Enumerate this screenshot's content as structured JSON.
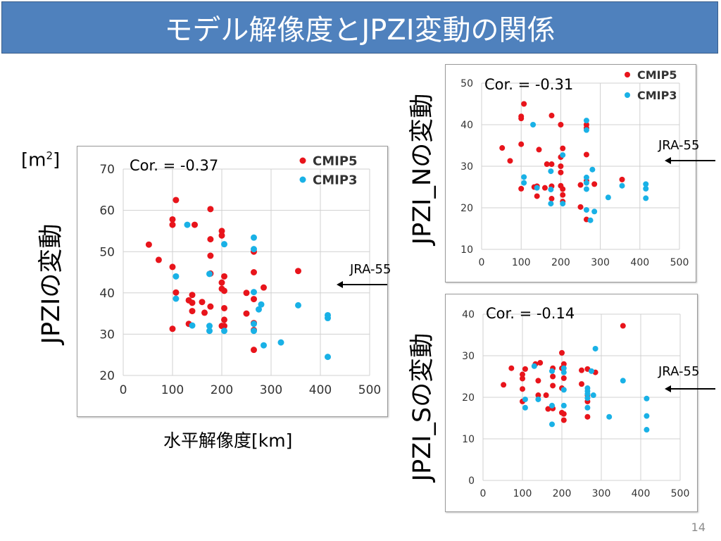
{
  "slide": {
    "title": "モデル解像度とJPZI変動の関係",
    "page_number": "14",
    "x_axis_title": "水平解像度[km]",
    "unit_prefix": "[m",
    "unit_exp": "2",
    "unit_suffix": "]",
    "arrow_label": "JRA-55",
    "marker_color_cmip5": "#e8141b",
    "marker_color_cmip3": "#19b1e6",
    "title_bg_color": "#4f81bd"
  },
  "chart_data": [
    {
      "id": "jpzi",
      "type": "scatter",
      "ylabel": "JPZIの変動",
      "annotation": "Cor. = -0.37",
      "xlim": [
        0,
        500
      ],
      "ylim": [
        20,
        70
      ],
      "xticks": [
        0,
        100,
        200,
        300,
        400,
        500
      ],
      "yticks": [
        20,
        30,
        40,
        50,
        60,
        70
      ],
      "legend": "top-right",
      "reference": {
        "label": "JRA-55",
        "value": 42
      },
      "series": [
        {
          "name": "CMIP5",
          "color": "#e8141b",
          "points": [
            [
              52,
              51.7
            ],
            [
              72,
              48
            ],
            [
              100,
              57.8
            ],
            [
              100,
              56.5
            ],
            [
              100,
              46.3
            ],
            [
              100,
              31.3
            ],
            [
              107,
              40.1
            ],
            [
              107,
              62.5
            ],
            [
              133,
              38.2
            ],
            [
              133,
              32.5
            ],
            [
              140,
              39.5
            ],
            [
              140,
              37.6
            ],
            [
              140,
              35.6
            ],
            [
              145,
              56.5
            ],
            [
              160,
              37.8
            ],
            [
              165,
              35.2
            ],
            [
              177,
              60.3
            ],
            [
              177,
              53
            ],
            [
              177,
              49
            ],
            [
              177,
              44.7
            ],
            [
              177,
              36.7
            ],
            [
              200,
              55
            ],
            [
              200,
              53.9
            ],
            [
              200,
              42.5
            ],
            [
              200,
              41
            ],
            [
              200,
              32
            ],
            [
              205,
              44
            ],
            [
              205,
              40.5
            ],
            [
              205,
              36.3
            ],
            [
              205,
              33.5
            ],
            [
              205,
              32
            ],
            [
              250,
              40
            ],
            [
              250,
              35
            ],
            [
              265,
              45
            ],
            [
              265,
              38.5
            ],
            [
              265,
              32.7
            ],
            [
              265,
              31
            ],
            [
              265,
              26.2
            ],
            [
              265,
              50
            ],
            [
              285,
              41.3
            ],
            [
              355,
              45.3
            ]
          ]
        },
        {
          "name": "CMIP3",
          "color": "#19b1e6",
          "points": [
            [
              107,
              38.6
            ],
            [
              107,
              44
            ],
            [
              130,
              56.5
            ],
            [
              140,
              32.1
            ],
            [
              175,
              32
            ],
            [
              175,
              30.8
            ],
            [
              175,
              44.6
            ],
            [
              205,
              51.8
            ],
            [
              205,
              30.8
            ],
            [
              265,
              53.4
            ],
            [
              265,
              50.6
            ],
            [
              265,
              40.2
            ],
            [
              265,
              32.5
            ],
            [
              265,
              30.8
            ],
            [
              275,
              36
            ],
            [
              280,
              37.2
            ],
            [
              285,
              27.3
            ],
            [
              320,
              28
            ],
            [
              355,
              37
            ],
            [
              415,
              34.6
            ],
            [
              415,
              33.9
            ],
            [
              415,
              24.5
            ]
          ]
        }
      ]
    },
    {
      "id": "jpzi_n",
      "type": "scatter",
      "ylabel": "JPZI_Nの変動",
      "annotation": "Cor. = -0.31",
      "xlim": [
        0,
        500
      ],
      "ylim": [
        10,
        50
      ],
      "xticks": [
        0,
        100,
        200,
        300,
        400,
        500
      ],
      "yticks": [
        10,
        20,
        30,
        40,
        50
      ],
      "legend": "top-right",
      "reference": {
        "label": "JRA-55",
        "value": 31
      },
      "series": [
        {
          "name": "CMIP5",
          "color": "#e8141b",
          "points": [
            [
              52,
              34.4
            ],
            [
              72,
              31.3
            ],
            [
              100,
              42
            ],
            [
              100,
              41.5
            ],
            [
              100,
              35.3
            ],
            [
              100,
              24.6
            ],
            [
              107,
              45
            ],
            [
              133,
              25
            ],
            [
              140,
              22.8
            ],
            [
              140,
              25.2
            ],
            [
              145,
              34
            ],
            [
              160,
              24.8
            ],
            [
              165,
              30.5
            ],
            [
              177,
              42.2
            ],
            [
              177,
              30.5
            ],
            [
              177,
              25.2
            ],
            [
              177,
              22.2
            ],
            [
              200,
              40
            ],
            [
              200,
              32.2
            ],
            [
              200,
              30
            ],
            [
              200,
              28.5
            ],
            [
              200,
              25.3
            ],
            [
              205,
              34.3
            ],
            [
              205,
              24.5
            ],
            [
              205,
              23.1
            ],
            [
              205,
              21.5
            ],
            [
              250,
              25.5
            ],
            [
              250,
              20.2
            ],
            [
              265,
              40
            ],
            [
              265,
              39.2
            ],
            [
              265,
              32.8
            ],
            [
              265,
              26.5
            ],
            [
              265,
              17.2
            ],
            [
              285,
              25.7
            ],
            [
              355,
              26.8
            ]
          ]
        },
        {
          "name": "CMIP3",
          "color": "#19b1e6",
          "points": [
            [
              107,
              27.4
            ],
            [
              107,
              26
            ],
            [
              130,
              40
            ],
            [
              140,
              24.8
            ],
            [
              175,
              24.4
            ],
            [
              175,
              21
            ],
            [
              175,
              28.8
            ],
            [
              205,
              32.7
            ],
            [
              205,
              21
            ],
            [
              265,
              41
            ],
            [
              265,
              38.7
            ],
            [
              265,
              27.3
            ],
            [
              265,
              26
            ],
            [
              265,
              24.5
            ],
            [
              265,
              19.5
            ],
            [
              275,
              17
            ],
            [
              280,
              29.2
            ],
            [
              285,
              19.1
            ],
            [
              320,
              22.5
            ],
            [
              355,
              25.3
            ],
            [
              415,
              25.7
            ],
            [
              415,
              24.6
            ],
            [
              415,
              22.3
            ]
          ]
        }
      ]
    },
    {
      "id": "jpzi_s",
      "type": "scatter",
      "ylabel": "JPZI_Sの変動",
      "annotation": "Cor. = -0.14",
      "xlim": [
        0,
        500
      ],
      "ylim": [
        0,
        40
      ],
      "xticks": [
        0,
        100,
        200,
        300,
        400,
        500
      ],
      "yticks": [
        0,
        10,
        20,
        30,
        40
      ],
      "reference": {
        "label": "JRA-55",
        "value": 21
      },
      "series": [
        {
          "name": "CMIP5",
          "color": "#e8141b",
          "points": [
            [
              52,
              23
            ],
            [
              72,
              27
            ],
            [
              100,
              25.5
            ],
            [
              100,
              24.5
            ],
            [
              100,
              22
            ],
            [
              100,
              19
            ],
            [
              107,
              26.8
            ],
            [
              133,
              28
            ],
            [
              140,
              24
            ],
            [
              140,
              20.5
            ],
            [
              145,
              28.3
            ],
            [
              160,
              20.5
            ],
            [
              165,
              17.2
            ],
            [
              177,
              22.8
            ],
            [
              177,
              17.3
            ],
            [
              177,
              27
            ],
            [
              177,
              25
            ],
            [
              200,
              30.7
            ],
            [
              200,
              27
            ],
            [
              200,
              22.2
            ],
            [
              200,
              16.3
            ],
            [
              205,
              28
            ],
            [
              205,
              24.6
            ],
            [
              205,
              16
            ],
            [
              205,
              14.5
            ],
            [
              250,
              23.2
            ],
            [
              250,
              26.5
            ],
            [
              265,
              26.8
            ],
            [
              265,
              19
            ],
            [
              265,
              15.3
            ],
            [
              265,
              20.5
            ],
            [
              285,
              26
            ],
            [
              355,
              37.2
            ]
          ]
        },
        {
          "name": "CMIP3",
          "color": "#19b1e6",
          "points": [
            [
              107,
              19.5
            ],
            [
              107,
              17.5
            ],
            [
              130,
              27.5
            ],
            [
              140,
              19.5
            ],
            [
              175,
              26.3
            ],
            [
              175,
              13.5
            ],
            [
              175,
              18
            ],
            [
              205,
              27
            ],
            [
              205,
              26
            ],
            [
              205,
              21.8
            ],
            [
              205,
              18
            ],
            [
              265,
              22.2
            ],
            [
              265,
              21.5
            ],
            [
              265,
              20.8
            ],
            [
              265,
              19.8
            ],
            [
              265,
              17.5
            ],
            [
              275,
              26.3
            ],
            [
              280,
              20.5
            ],
            [
              285,
              31.7
            ],
            [
              320,
              15.3
            ],
            [
              355,
              24
            ],
            [
              415,
              19.7
            ],
            [
              415,
              15.5
            ],
            [
              415,
              12.2
            ]
          ]
        }
      ]
    }
  ]
}
